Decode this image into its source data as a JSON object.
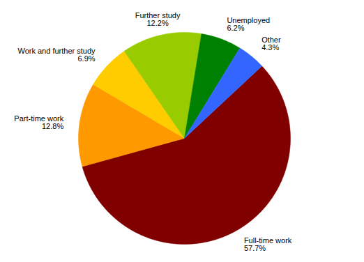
{
  "chart_data": {
    "type": "pie",
    "categories": [
      "Full-time work",
      "Part-time work",
      "Work and further study",
      "Further study",
      "Unemployed",
      "Other"
    ],
    "values": [
      57.7,
      12.8,
      6.9,
      12.2,
      6.2,
      4.3
    ],
    "value_labels": [
      "57.7%",
      "12.8%",
      "6.9%",
      "12.2%",
      "6.2%",
      "4.3%"
    ],
    "colors": [
      "#800000",
      "#ff9900",
      "#ffcc00",
      "#99cc00",
      "#008000",
      "#3366ff"
    ],
    "data_labels": true
  }
}
